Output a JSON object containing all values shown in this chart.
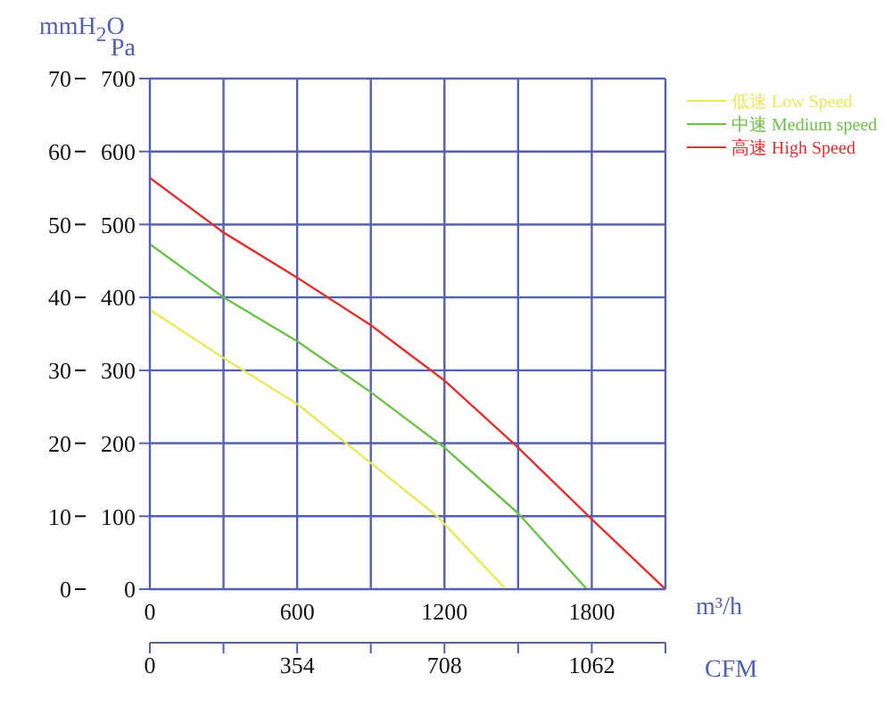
{
  "chart_data": {
    "type": "line",
    "xlabel": "m³/h",
    "ylabel": "Pa",
    "y2label": "mmH$_{2}$O",
    "x2label": "CFM",
    "xlim": [
      0,
      2100
    ],
    "xticks": [
      0,
      {
        "value": 300,
        "label": null
      },
      600,
      {
        "value": 900,
        "label": null
      },
      1200,
      {
        "value": 1500,
        "label": null
      },
      1800,
      {
        "value": 2100,
        "label": null
      }
    ],
    "x2lim": [
      0,
      1239
    ],
    "x2ticks": [
      0,
      {
        "value": 177,
        "label": null
      },
      354,
      {
        "value": 531,
        "label": null
      },
      708,
      {
        "value": 885,
        "label": null
      },
      1062,
      {
        "value": 1239,
        "label": null
      }
    ],
    "ylim": [
      0,
      700
    ],
    "yticks": [
      0,
      100,
      200,
      300,
      400,
      500,
      600,
      700
    ],
    "y2lim": [
      0,
      70
    ],
    "y2ticks": [
      0,
      10,
      20,
      30,
      40,
      50,
      60,
      70
    ],
    "grid": true,
    "legend": "top right",
    "marker": "none",
    "line_style": "solid",
    "series": [
      {
        "name": "低速 Low Speed",
        "color": "#e8e85a",
        "x": [
          0,
          300,
          600,
          900,
          1170,
          1450
        ],
        "values": [
          383,
          317,
          254,
          173,
          100,
          0
        ]
      },
      {
        "name": "中速 Medium speed",
        "color": "#6cbf4a",
        "x": [
          0,
          300,
          600,
          900,
          1200,
          1500,
          1780
        ],
        "values": [
          473,
          400,
          340,
          270,
          194,
          104,
          0
        ]
      },
      {
        "name": "高速 High Speed",
        "color": "#e03030",
        "x": [
          0,
          300,
          600,
          900,
          1200,
          1500,
          1800,
          2100
        ],
        "values": [
          564,
          489,
          427,
          362,
          286,
          194,
          96,
          0
        ]
      }
    ]
  }
}
